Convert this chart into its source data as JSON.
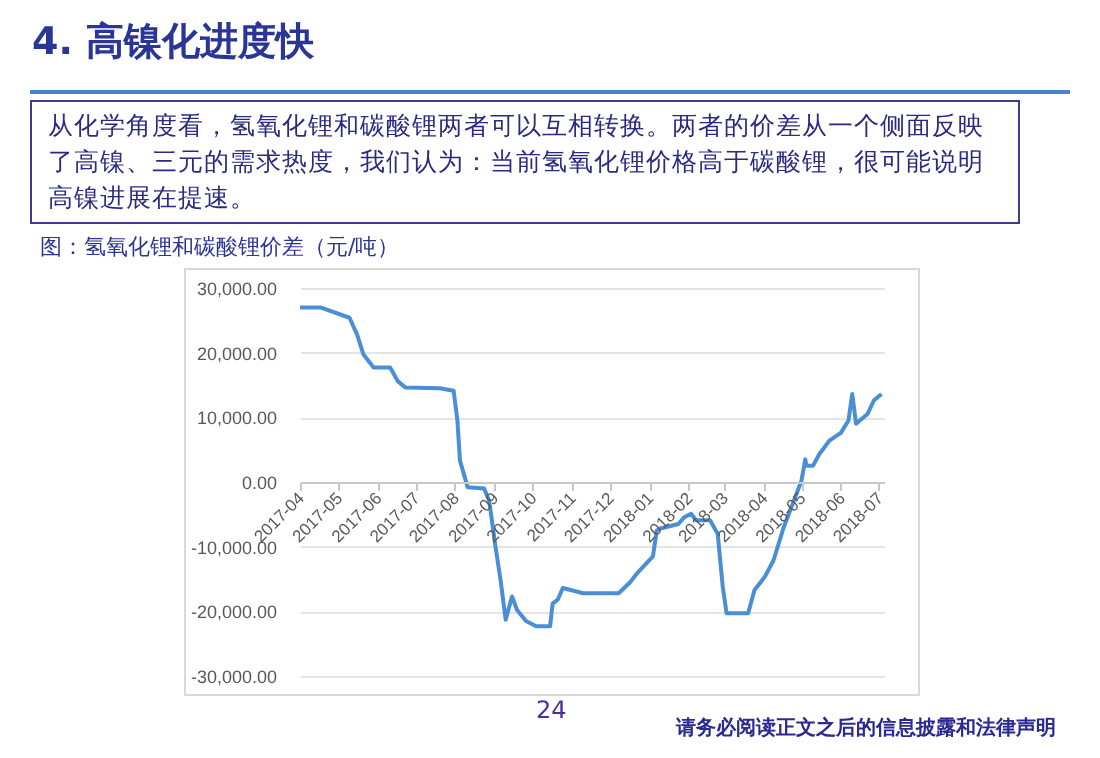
{
  "chart_data": {
    "type": "line",
    "title": "图：氢氧化锂和碳酸锂价差（元/吨）",
    "annotations": [
      "4. 高镍化进度快",
      "从化学角度看，氢氧化锂和碳酸锂两者可以互相转换。两者的价差从一个侧面反映了高镍、三元的需求热度，我们认为：当前氢氧化锂价格高于碳酸锂，很可能说明高镍进展在提速。",
      "24",
      "请务必阅读正文之后的信息披露和法律声明"
    ],
    "x": [
      "2017-04-01",
      "2017-04-17",
      "2017-05-10",
      "2017-05-16",
      "2017-05-21",
      "2017-05-29",
      "2017-06-11",
      "2017-06-17",
      "2017-06-23",
      "2017-07-20",
      "2017-07-31",
      "2017-08-03",
      "2017-08-05",
      "2017-08-11",
      "2017-08-24",
      "2017-08-28",
      "2017-09-02",
      "2017-09-06",
      "2017-09-10",
      "2017-09-15",
      "2017-09-19",
      "2017-09-26",
      "2017-10-04",
      "2017-10-15",
      "2017-10-17",
      "2017-10-21",
      "2017-10-25",
      "2017-11-10",
      "2017-12-08",
      "2017-12-17",
      "2017-12-23",
      "2018-01-04",
      "2018-01-07",
      "2018-01-10",
      "2018-01-24",
      "2018-01-29",
      "2018-02-03",
      "2018-02-07",
      "2018-02-18",
      "2018-02-24",
      "2018-02-28",
      "2018-03-03",
      "2018-03-20",
      "2018-03-25",
      "2018-04-02",
      "2018-04-09",
      "2018-04-17",
      "2018-04-25",
      "2018-05-01",
      "2018-05-04",
      "2018-05-05",
      "2018-05-10",
      "2018-05-15",
      "2018-05-23",
      "2018-06-01",
      "2018-06-07",
      "2018-06-10",
      "2018-06-13",
      "2018-06-22",
      "2018-06-27",
      "2018-07-03"
    ],
    "series": [
      {
        "color": "#4a8ed6",
        "values": [
          27000,
          27000,
          25400,
          22800,
          19700,
          17700,
          17700,
          15600,
          14600,
          14500,
          14100,
          9500,
          3300,
          -800,
          -1000,
          -2900,
          -10000,
          -15200,
          -21300,
          -17700,
          -19800,
          -21500,
          -22300,
          -22300,
          -18800,
          -18200,
          -16400,
          -17200,
          -17200,
          -15500,
          -14000,
          -11500,
          -7500,
          -7200,
          -6500,
          -5400,
          -4900,
          -5900,
          -5900,
          -8000,
          -16200,
          -20300,
          -20300,
          -16700,
          -14700,
          -12100,
          -7000,
          -2900,
          200,
          3500,
          2500,
          2500,
          4300,
          6400,
          7600,
          9500,
          13600,
          9000,
          10500,
          12600,
          13600
        ]
      }
    ],
    "xlim": [
      "2017-04-01",
      "2018-07-05"
    ],
    "xticks": [
      "2017-04",
      "2017-05",
      "2017-06",
      "2017-07",
      "2017-08",
      "2017-09",
      "2017-10",
      "2017-11",
      "2017-12",
      "2018-01",
      "2018-02",
      "2018-03",
      "2018-04",
      "2018-05",
      "2018-06",
      "2018-07"
    ],
    "ylim": [
      -30000,
      30000
    ],
    "yticks": [
      {
        "value": -30000,
        "label": "-30,000.00"
      },
      {
        "value": -20000,
        "label": "-20,000.00"
      },
      {
        "value": -10000,
        "label": "-10,000.00"
      },
      {
        "value": 0,
        "label": "0.00"
      },
      {
        "value": 10000,
        "label": "10,000.00"
      },
      {
        "value": 20000,
        "label": "20,000.00"
      },
      {
        "value": 30000,
        "label": "30,000.00"
      }
    ],
    "grid": "y"
  }
}
